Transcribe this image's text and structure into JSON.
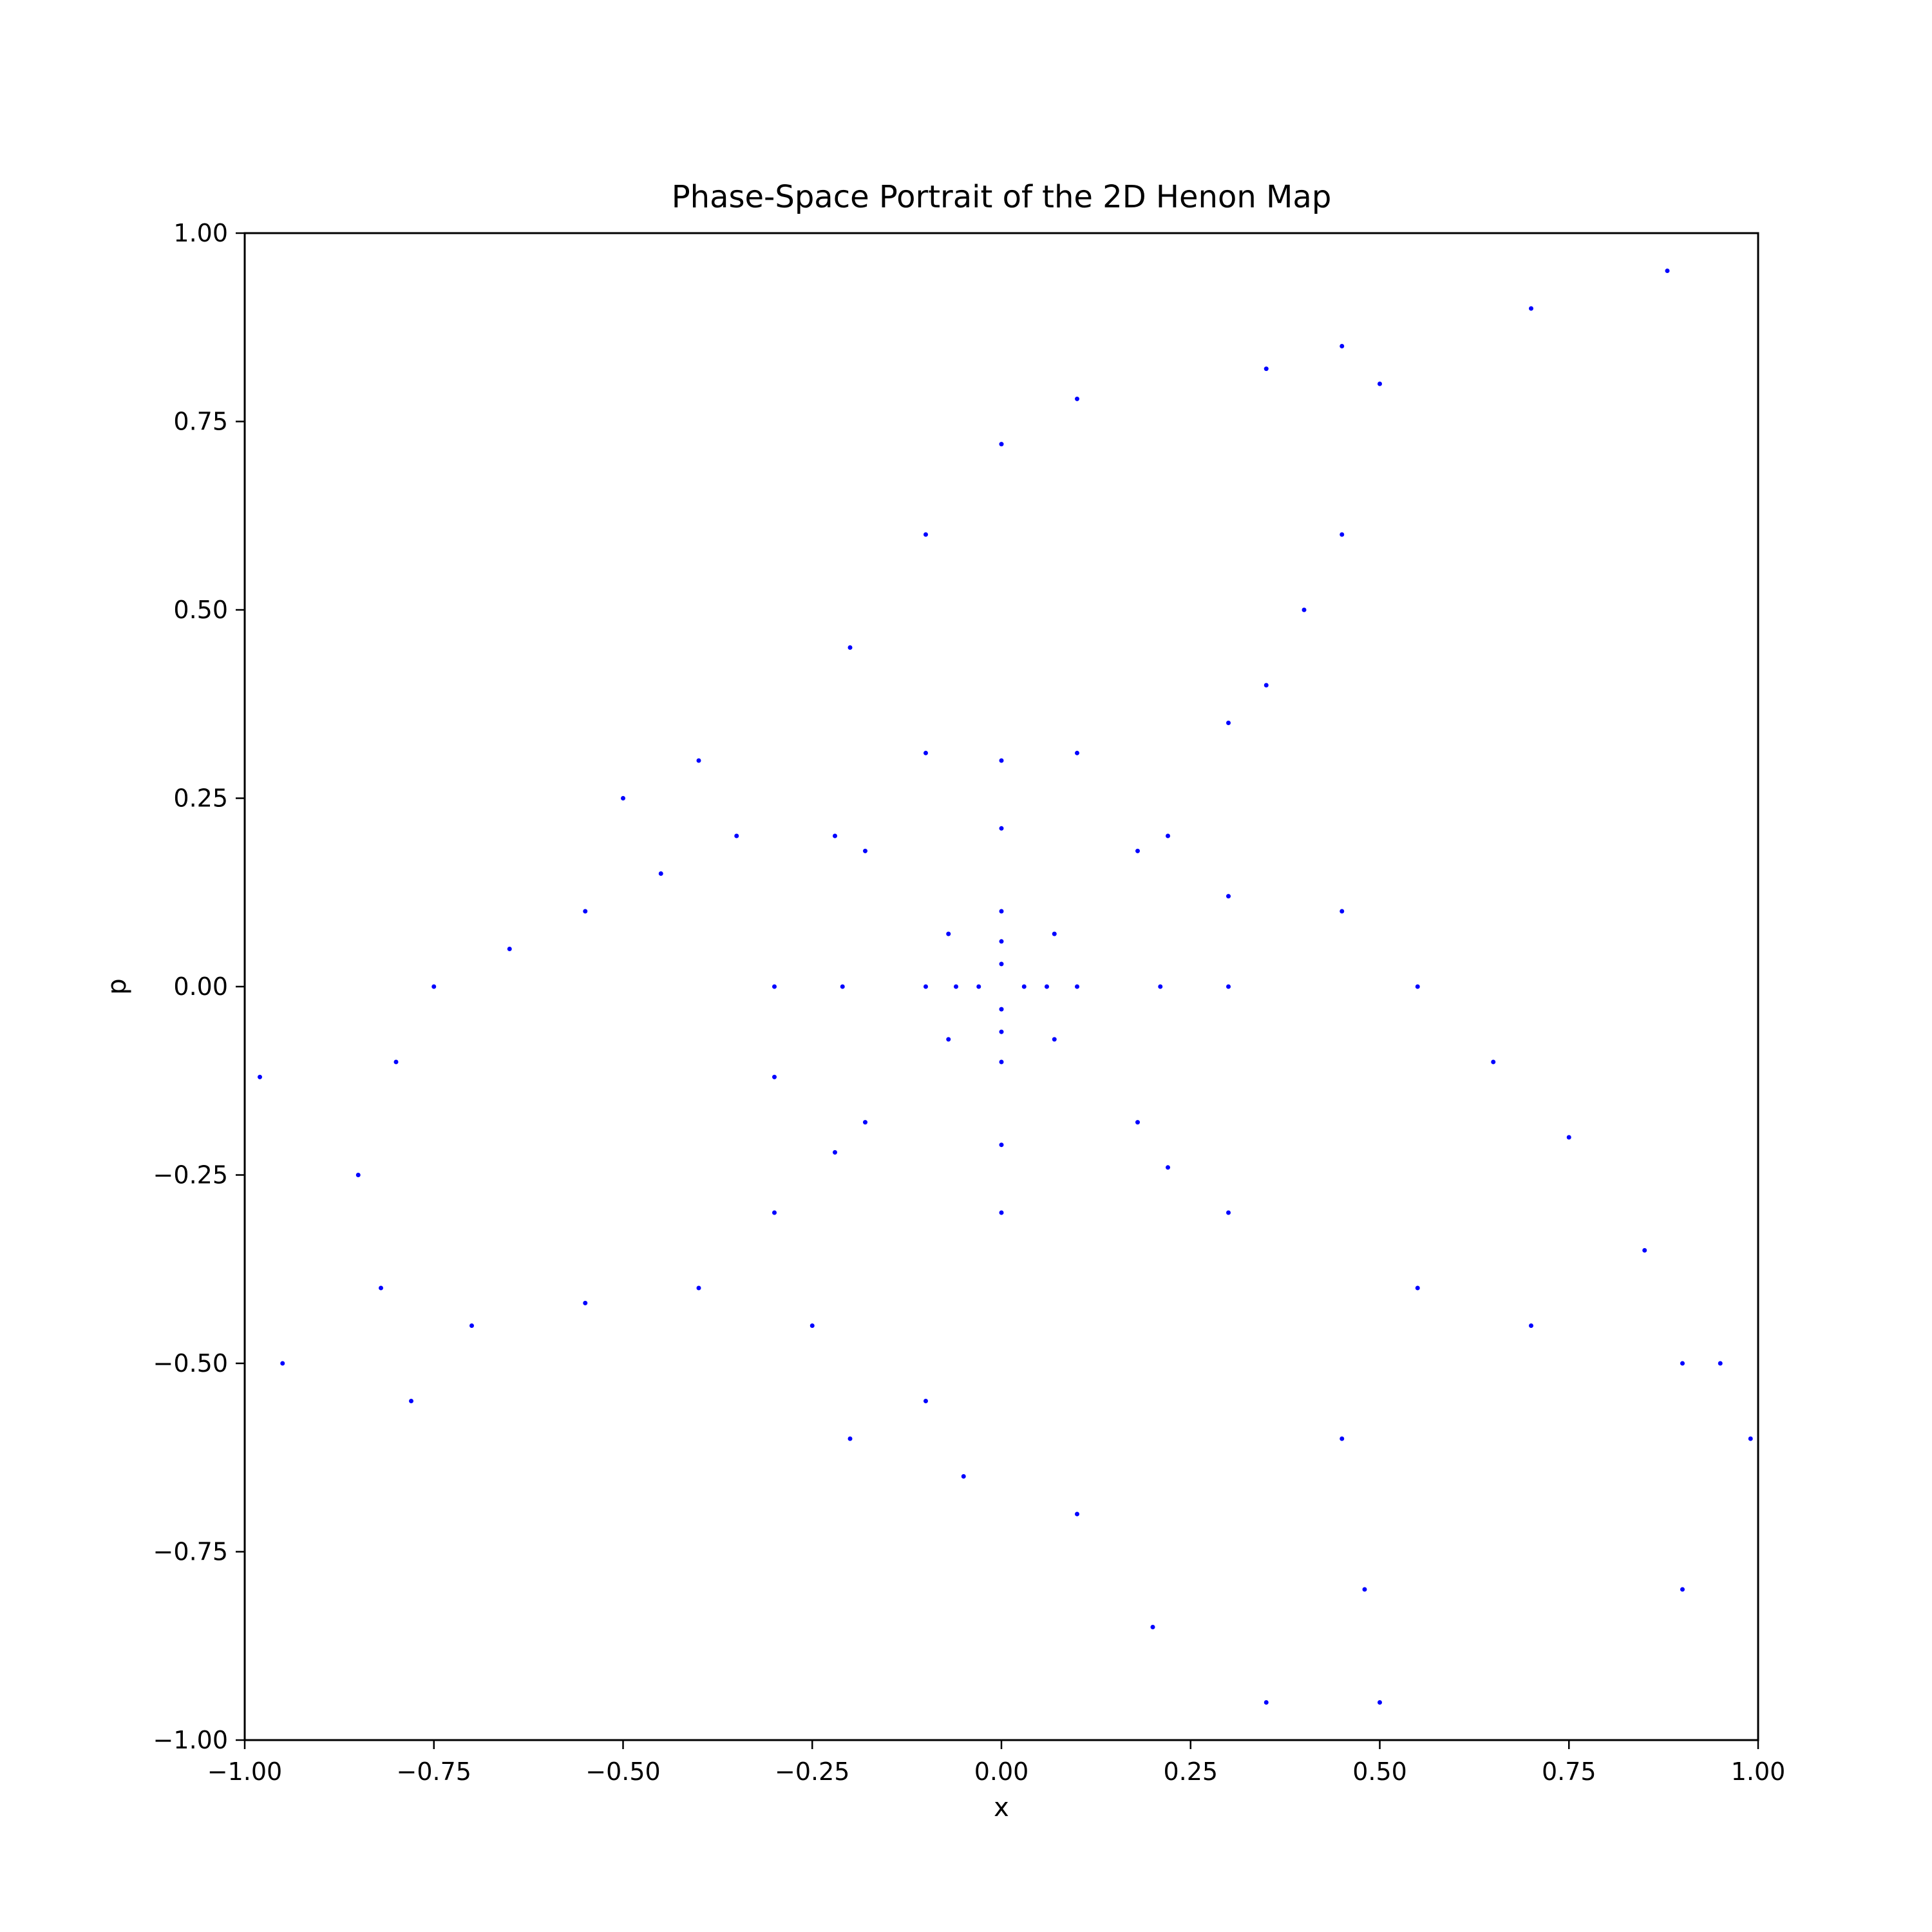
{
  "chart_data": {
    "type": "scatter",
    "title": "Phase-Space Portrait of the 2D Henon Map",
    "xlabel": "x",
    "ylabel": "p",
    "xlim": [
      -1.0,
      1.0
    ],
    "ylim": [
      -1.0,
      1.0
    ],
    "xticks": [
      -1.0,
      -0.75,
      -0.5,
      -0.25,
      0.0,
      0.25,
      0.5,
      0.75,
      1.0
    ],
    "yticks": [
      -1.0,
      -0.75,
      -0.5,
      -0.25,
      0.0,
      0.25,
      0.5,
      0.75,
      1.0
    ],
    "xtick_labels": [
      "−1.00",
      "−0.75",
      "−0.50",
      "−0.25",
      "0.00",
      "0.25",
      "0.50",
      "0.75",
      "1.00"
    ],
    "ytick_labels": [
      "−1.00",
      "−0.75",
      "−0.50",
      "−0.25",
      "0.00",
      "0.25",
      "0.50",
      "0.75",
      "1.00"
    ],
    "grid": false,
    "legend": "none",
    "marker_color": "#0000ff",
    "series": [
      {
        "values": [
          {
            "x": 0.03,
            "y": 0.0
          },
          {
            "x": 0.0,
            "y": 0.03
          },
          {
            "x": -0.03,
            "y": 0.0
          },
          {
            "x": 0.0,
            "y": -0.03
          },
          {
            "x": 0.06,
            "y": 0.0
          },
          {
            "x": 0.0,
            "y": 0.06
          },
          {
            "x": -0.06,
            "y": 0.0
          },
          {
            "x": 0.0,
            "y": -0.06
          },
          {
            "x": 0.1,
            "y": 0.0
          },
          {
            "x": 0.07,
            "y": 0.07
          },
          {
            "x": 0.0,
            "y": 0.1
          },
          {
            "x": -0.07,
            "y": 0.07
          },
          {
            "x": -0.1,
            "y": 0.0
          },
          {
            "x": -0.07,
            "y": -0.07
          },
          {
            "x": 0.0,
            "y": -0.1
          },
          {
            "x": 0.07,
            "y": -0.07
          },
          {
            "x": 0.21,
            "y": 0.0
          },
          {
            "x": 0.18,
            "y": 0.18
          },
          {
            "x": 0.0,
            "y": 0.21
          },
          {
            "x": -0.18,
            "y": 0.18
          },
          {
            "x": -0.21,
            "y": 0.0
          },
          {
            "x": -0.18,
            "y": -0.18
          },
          {
            "x": 0.0,
            "y": -0.21
          },
          {
            "x": 0.18,
            "y": -0.18
          },
          {
            "x": 0.22,
            "y": 0.2
          },
          {
            "x": -0.22,
            "y": 0.2
          },
          {
            "x": -0.22,
            "y": -0.22
          },
          {
            "x": 0.22,
            "y": -0.24
          },
          {
            "x": 0.0,
            "y": 0.3
          },
          {
            "x": 0.1,
            "y": 0.31
          },
          {
            "x": -0.1,
            "y": 0.31
          },
          {
            "x": 0.0,
            "y": -0.3
          },
          {
            "x": 0.3,
            "y": 0.0
          },
          {
            "x": -0.3,
            "y": 0.0
          },
          {
            "x": 0.3,
            "y": 0.12
          },
          {
            "x": -0.3,
            "y": -0.12
          },
          {
            "x": -0.2,
            "y": 0.45
          },
          {
            "x": -0.1,
            "y": 0.6
          },
          {
            "x": 0.0,
            "y": 0.72
          },
          {
            "x": 0.1,
            "y": 0.78
          },
          {
            "x": 0.35,
            "y": 0.82
          },
          {
            "x": 0.45,
            "y": 0.85
          },
          {
            "x": 0.5,
            "y": 0.8
          },
          {
            "x": 0.45,
            "y": 0.6
          },
          {
            "x": 0.4,
            "y": 0.5
          },
          {
            "x": 0.35,
            "y": 0.4
          },
          {
            "x": 0.3,
            "y": 0.35
          },
          {
            "x": 0.45,
            "y": 0.1
          },
          {
            "x": 0.55,
            "y": 0.0
          },
          {
            "x": 0.65,
            "y": -0.1
          },
          {
            "x": 0.75,
            "y": -0.2
          },
          {
            "x": 0.85,
            "y": -0.35
          },
          {
            "x": 0.95,
            "y": -0.5
          },
          {
            "x": 0.9,
            "y": -0.5
          },
          {
            "x": 0.7,
            "y": -0.45
          },
          {
            "x": 0.55,
            "y": -0.4
          },
          {
            "x": 0.45,
            "y": -0.6
          },
          {
            "x": 0.48,
            "y": -0.8
          },
          {
            "x": 0.5,
            "y": -0.95
          },
          {
            "x": 0.3,
            "y": -0.3
          },
          {
            "x": 0.1,
            "y": -0.7
          },
          {
            "x": 0.2,
            "y": -0.85
          },
          {
            "x": 0.35,
            "y": -0.95
          },
          {
            "x": -0.1,
            "y": -0.55
          },
          {
            "x": -0.25,
            "y": -0.45
          },
          {
            "x": -0.4,
            "y": -0.4
          },
          {
            "x": -0.55,
            "y": -0.42
          },
          {
            "x": -0.7,
            "y": -0.45
          },
          {
            "x": -0.78,
            "y": -0.55
          },
          {
            "x": -0.82,
            "y": -0.4
          },
          {
            "x": -0.85,
            "y": -0.25
          },
          {
            "x": -0.8,
            "y": -0.1
          },
          {
            "x": -0.75,
            "y": 0.0
          },
          {
            "x": -0.65,
            "y": 0.05
          },
          {
            "x": -0.55,
            "y": 0.1
          },
          {
            "x": -0.45,
            "y": 0.15
          },
          {
            "x": -0.35,
            "y": 0.2
          },
          {
            "x": -0.4,
            "y": 0.3
          },
          {
            "x": -0.5,
            "y": 0.25
          },
          {
            "x": -0.3,
            "y": -0.3
          },
          {
            "x": -0.2,
            "y": -0.6
          },
          {
            "x": -0.05,
            "y": -0.65
          },
          {
            "x": 0.7,
            "y": 0.9
          },
          {
            "x": 0.88,
            "y": 0.95
          },
          {
            "x": -0.98,
            "y": -0.12
          },
          {
            "x": -0.95,
            "y": -0.5
          },
          {
            "x": 0.99,
            "y": -0.6
          },
          {
            "x": 0.9,
            "y": -0.8
          }
        ]
      }
    ]
  }
}
